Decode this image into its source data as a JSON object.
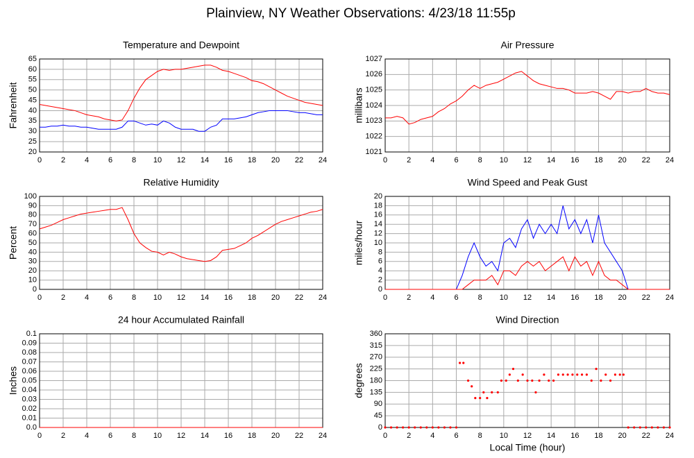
{
  "title": "Plainview, NY Weather Observations: 4/23/18 11:55p",
  "chart_data": [
    {
      "type": "line",
      "title": "Temperature and Dewpoint",
      "y_label": "Fahrenheit",
      "x": [
        0,
        0.5,
        1,
        1.5,
        2,
        2.5,
        3,
        3.5,
        4,
        4.5,
        5,
        5.5,
        6,
        6.5,
        7,
        7.5,
        8,
        8.5,
        9,
        9.5,
        10,
        10.5,
        11,
        11.5,
        12,
        12.5,
        13,
        13.5,
        14,
        14.5,
        15,
        15.5,
        16,
        16.5,
        17,
        17.5,
        18,
        18.5,
        19,
        19.5,
        20,
        20.5,
        21,
        21.5,
        22,
        22.5,
        23,
        23.5,
        24
      ],
      "series": [
        {
          "name": "Temperature",
          "color": "#ff0000",
          "values": [
            43,
            42.5,
            42,
            41.5,
            41,
            40.5,
            40,
            39,
            38,
            37.5,
            37,
            36,
            35.5,
            35,
            35.5,
            40,
            46,
            51,
            55,
            57,
            59,
            60,
            59.5,
            60,
            60,
            60.5,
            61,
            61.5,
            62,
            62,
            61,
            59.5,
            59,
            58,
            57,
            56,
            54.5,
            54,
            53,
            51.5,
            50,
            48.5,
            47,
            46,
            45,
            44,
            43.5,
            43,
            42.5
          ]
        },
        {
          "name": "Dewpoint",
          "color": "#0000ff",
          "values": [
            32,
            32,
            32.5,
            32.5,
            33,
            32.5,
            32.5,
            32,
            32,
            31.5,
            31,
            31,
            31,
            31,
            32,
            35,
            35,
            34,
            33,
            33.5,
            33,
            35,
            34,
            32,
            31,
            31,
            31,
            30,
            30,
            32,
            33,
            36,
            36,
            36,
            36.5,
            37,
            38,
            39,
            39.5,
            40,
            40,
            40,
            40,
            39.5,
            39,
            39,
            38.5,
            38,
            38
          ]
        }
      ],
      "xlim": [
        0,
        24
      ],
      "xticks": [
        0,
        2,
        4,
        6,
        8,
        10,
        12,
        14,
        16,
        18,
        20,
        22,
        24
      ],
      "ylim": [
        20,
        65
      ],
      "yticks": [
        20,
        25,
        30,
        35,
        40,
        45,
        50,
        55,
        60,
        65
      ],
      "grid": true
    },
    {
      "type": "line",
      "title": "Air Pressure",
      "y_label": "millibars",
      "x": [
        0,
        0.5,
        1,
        1.5,
        2,
        2.5,
        3,
        3.5,
        4,
        4.5,
        5,
        5.5,
        6,
        6.5,
        7,
        7.5,
        8,
        8.5,
        9,
        9.5,
        10,
        10.5,
        11,
        11.5,
        12,
        12.5,
        13,
        13.5,
        14,
        14.5,
        15,
        15.5,
        16,
        16.5,
        17,
        17.5,
        18,
        18.5,
        19,
        19.5,
        20,
        20.5,
        21,
        21.5,
        22,
        22.5,
        23,
        23.5,
        24
      ],
      "series": [
        {
          "name": "Pressure",
          "color": "#ff0000",
          "values": [
            1023.2,
            1023.2,
            1023.3,
            1023.2,
            1022.8,
            1022.9,
            1023.1,
            1023.2,
            1023.3,
            1023.6,
            1023.8,
            1024.1,
            1024.3,
            1024.6,
            1025.0,
            1025.3,
            1025.1,
            1025.3,
            1025.4,
            1025.5,
            1025.7,
            1025.9,
            1026.1,
            1026.2,
            1025.9,
            1025.6,
            1025.4,
            1025.3,
            1025.2,
            1025.1,
            1025.1,
            1025.0,
            1024.8,
            1024.8,
            1024.8,
            1024.9,
            1024.8,
            1024.6,
            1024.4,
            1024.9,
            1024.9,
            1024.8,
            1024.9,
            1024.9,
            1025.1,
            1024.9,
            1024.8,
            1024.8,
            1024.7
          ]
        }
      ],
      "xlim": [
        0,
        24
      ],
      "xticks": [
        0,
        2,
        4,
        6,
        8,
        10,
        12,
        14,
        16,
        18,
        20,
        22,
        24
      ],
      "ylim": [
        1021,
        1027
      ],
      "yticks": [
        1021,
        1022,
        1023,
        1024,
        1025,
        1026,
        1027
      ],
      "grid": true
    },
    {
      "type": "line",
      "title": "Relative Humidity",
      "y_label": "Percent",
      "x": [
        0,
        0.5,
        1,
        1.5,
        2,
        2.5,
        3,
        3.5,
        4,
        4.5,
        5,
        5.5,
        6,
        6.5,
        7,
        7.5,
        8,
        8.5,
        9,
        9.5,
        10,
        10.5,
        11,
        11.5,
        12,
        12.5,
        13,
        13.5,
        14,
        14.5,
        15,
        15.5,
        16,
        16.5,
        17,
        17.5,
        18,
        18.5,
        19,
        19.5,
        20,
        20.5,
        21,
        21.5,
        22,
        22.5,
        23,
        23.5,
        24
      ],
      "series": [
        {
          "name": "Humidity",
          "color": "#ff0000",
          "values": [
            65,
            67,
            69,
            72,
            75,
            77,
            79,
            81,
            82,
            83,
            84,
            85,
            86,
            86,
            88,
            75,
            60,
            50,
            45,
            41,
            40,
            37,
            40,
            38,
            35,
            33,
            32,
            31,
            30,
            31,
            35,
            42,
            43,
            44,
            47,
            50,
            55,
            58,
            62,
            66,
            70,
            73,
            75,
            77,
            79,
            81,
            83,
            84,
            86
          ]
        }
      ],
      "xlim": [
        0,
        24
      ],
      "xticks": [
        0,
        2,
        4,
        6,
        8,
        10,
        12,
        14,
        16,
        18,
        20,
        22,
        24
      ],
      "ylim": [
        0,
        100
      ],
      "yticks": [
        0,
        10,
        20,
        30,
        40,
        50,
        60,
        70,
        80,
        90,
        100
      ],
      "grid": true
    },
    {
      "type": "line",
      "title": "Wind Speed and Peak Gust",
      "y_label": "miles/hour",
      "x": [
        0,
        0.5,
        1,
        1.5,
        2,
        2.5,
        3,
        3.5,
        4,
        4.5,
        5,
        5.5,
        6,
        6.5,
        7,
        7.5,
        8,
        8.5,
        9,
        9.5,
        10,
        10.5,
        11,
        11.5,
        12,
        12.5,
        13,
        13.5,
        14,
        14.5,
        15,
        15.5,
        16,
        16.5,
        17,
        17.5,
        18,
        18.5,
        19,
        19.5,
        20,
        20.5,
        21,
        21.5,
        22,
        22.5,
        23,
        23.5,
        24
      ],
      "series": [
        {
          "name": "Peak Gust",
          "color": "#0000ff",
          "values": [
            0,
            0,
            0,
            0,
            0,
            0,
            0,
            0,
            0,
            0,
            0,
            0,
            0,
            3,
            7,
            10,
            7,
            5,
            6,
            4,
            10,
            11,
            9,
            13,
            15,
            11,
            14,
            12,
            14,
            12,
            18,
            13,
            15,
            12,
            15,
            10,
            16,
            10,
            8,
            6,
            4,
            0,
            0,
            0,
            0,
            0,
            0,
            0,
            0
          ]
        },
        {
          "name": "Wind Speed",
          "color": "#ff0000",
          "values": [
            0,
            0,
            0,
            0,
            0,
            0,
            0,
            0,
            0,
            0,
            0,
            0,
            0,
            0,
            1,
            2,
            2,
            2,
            3,
            1,
            4,
            4,
            3,
            5,
            6,
            5,
            6,
            4,
            5,
            6,
            7,
            4,
            7,
            5,
            6,
            3,
            6,
            3,
            2,
            2,
            1,
            0,
            0,
            0,
            0,
            0,
            0,
            0,
            0
          ]
        }
      ],
      "xlim": [
        0,
        24
      ],
      "xticks": [
        0,
        2,
        4,
        6,
        8,
        10,
        12,
        14,
        16,
        18,
        20,
        22,
        24
      ],
      "ylim": [
        0,
        20
      ],
      "yticks": [
        0,
        2,
        4,
        6,
        8,
        10,
        12,
        14,
        16,
        18,
        20
      ],
      "grid": true
    },
    {
      "type": "line",
      "title": "24 hour Accumulated Rainfall",
      "y_label": "Inches",
      "x": [
        0,
        24
      ],
      "series": [
        {
          "name": "Rainfall",
          "color": "#ff0000",
          "values": [
            0,
            0
          ]
        }
      ],
      "xlim": [
        0,
        24
      ],
      "xticks": [
        0,
        2,
        4,
        6,
        8,
        10,
        12,
        14,
        16,
        18,
        20,
        22,
        24
      ],
      "ylim": [
        0,
        0.1
      ],
      "yticks": [
        {
          "value": 0,
          "label": "0.0"
        },
        0.01,
        0.02,
        0.03,
        0.04,
        0.05,
        0.06,
        0.07,
        0.08,
        0.09,
        0.1
      ],
      "grid": true
    },
    {
      "type": "scatter",
      "title": "Wind Direction",
      "y_label": "degrees",
      "x_label": "Local Time (hour)",
      "x": [
        0,
        0.5,
        1,
        1.5,
        2,
        2.5,
        3,
        3.5,
        4,
        4.5,
        5,
        5.5,
        6,
        6.3,
        6.6,
        7,
        7.3,
        7.6,
        8,
        8.3,
        8.6,
        9,
        9.5,
        9.8,
        10.2,
        10.5,
        10.8,
        11.2,
        11.6,
        12,
        12.4,
        12.7,
        13,
        13.4,
        13.8,
        14.2,
        14.6,
        15,
        15.4,
        15.8,
        16.2,
        16.6,
        17,
        17.4,
        17.8,
        18.2,
        18.6,
        19,
        19.4,
        19.8,
        20.1,
        20.5,
        21,
        21.5,
        22,
        22.5,
        23,
        23.5,
        24
      ],
      "series": [
        {
          "name": "Direction",
          "color": "#ff0000",
          "values": [
            0,
            0,
            0,
            0,
            0,
            0,
            0,
            0,
            0,
            0,
            0,
            0,
            0,
            248,
            248,
            180,
            158,
            113,
            113,
            135,
            113,
            135,
            135,
            180,
            180,
            203,
            225,
            180,
            203,
            180,
            180,
            135,
            180,
            203,
            180,
            180,
            203,
            203,
            203,
            203,
            203,
            203,
            203,
            180,
            225,
            180,
            203,
            180,
            203,
            203,
            203,
            0,
            0,
            0,
            0,
            0,
            0,
            0,
            0
          ]
        }
      ],
      "xlim": [
        0,
        24
      ],
      "xticks": [
        0,
        2,
        4,
        6,
        8,
        10,
        12,
        14,
        16,
        18,
        20,
        22,
        24
      ],
      "ylim": [
        0,
        360
      ],
      "yticks": [
        0,
        45,
        90,
        135,
        180,
        225,
        270,
        315,
        360
      ],
      "grid": true
    }
  ]
}
